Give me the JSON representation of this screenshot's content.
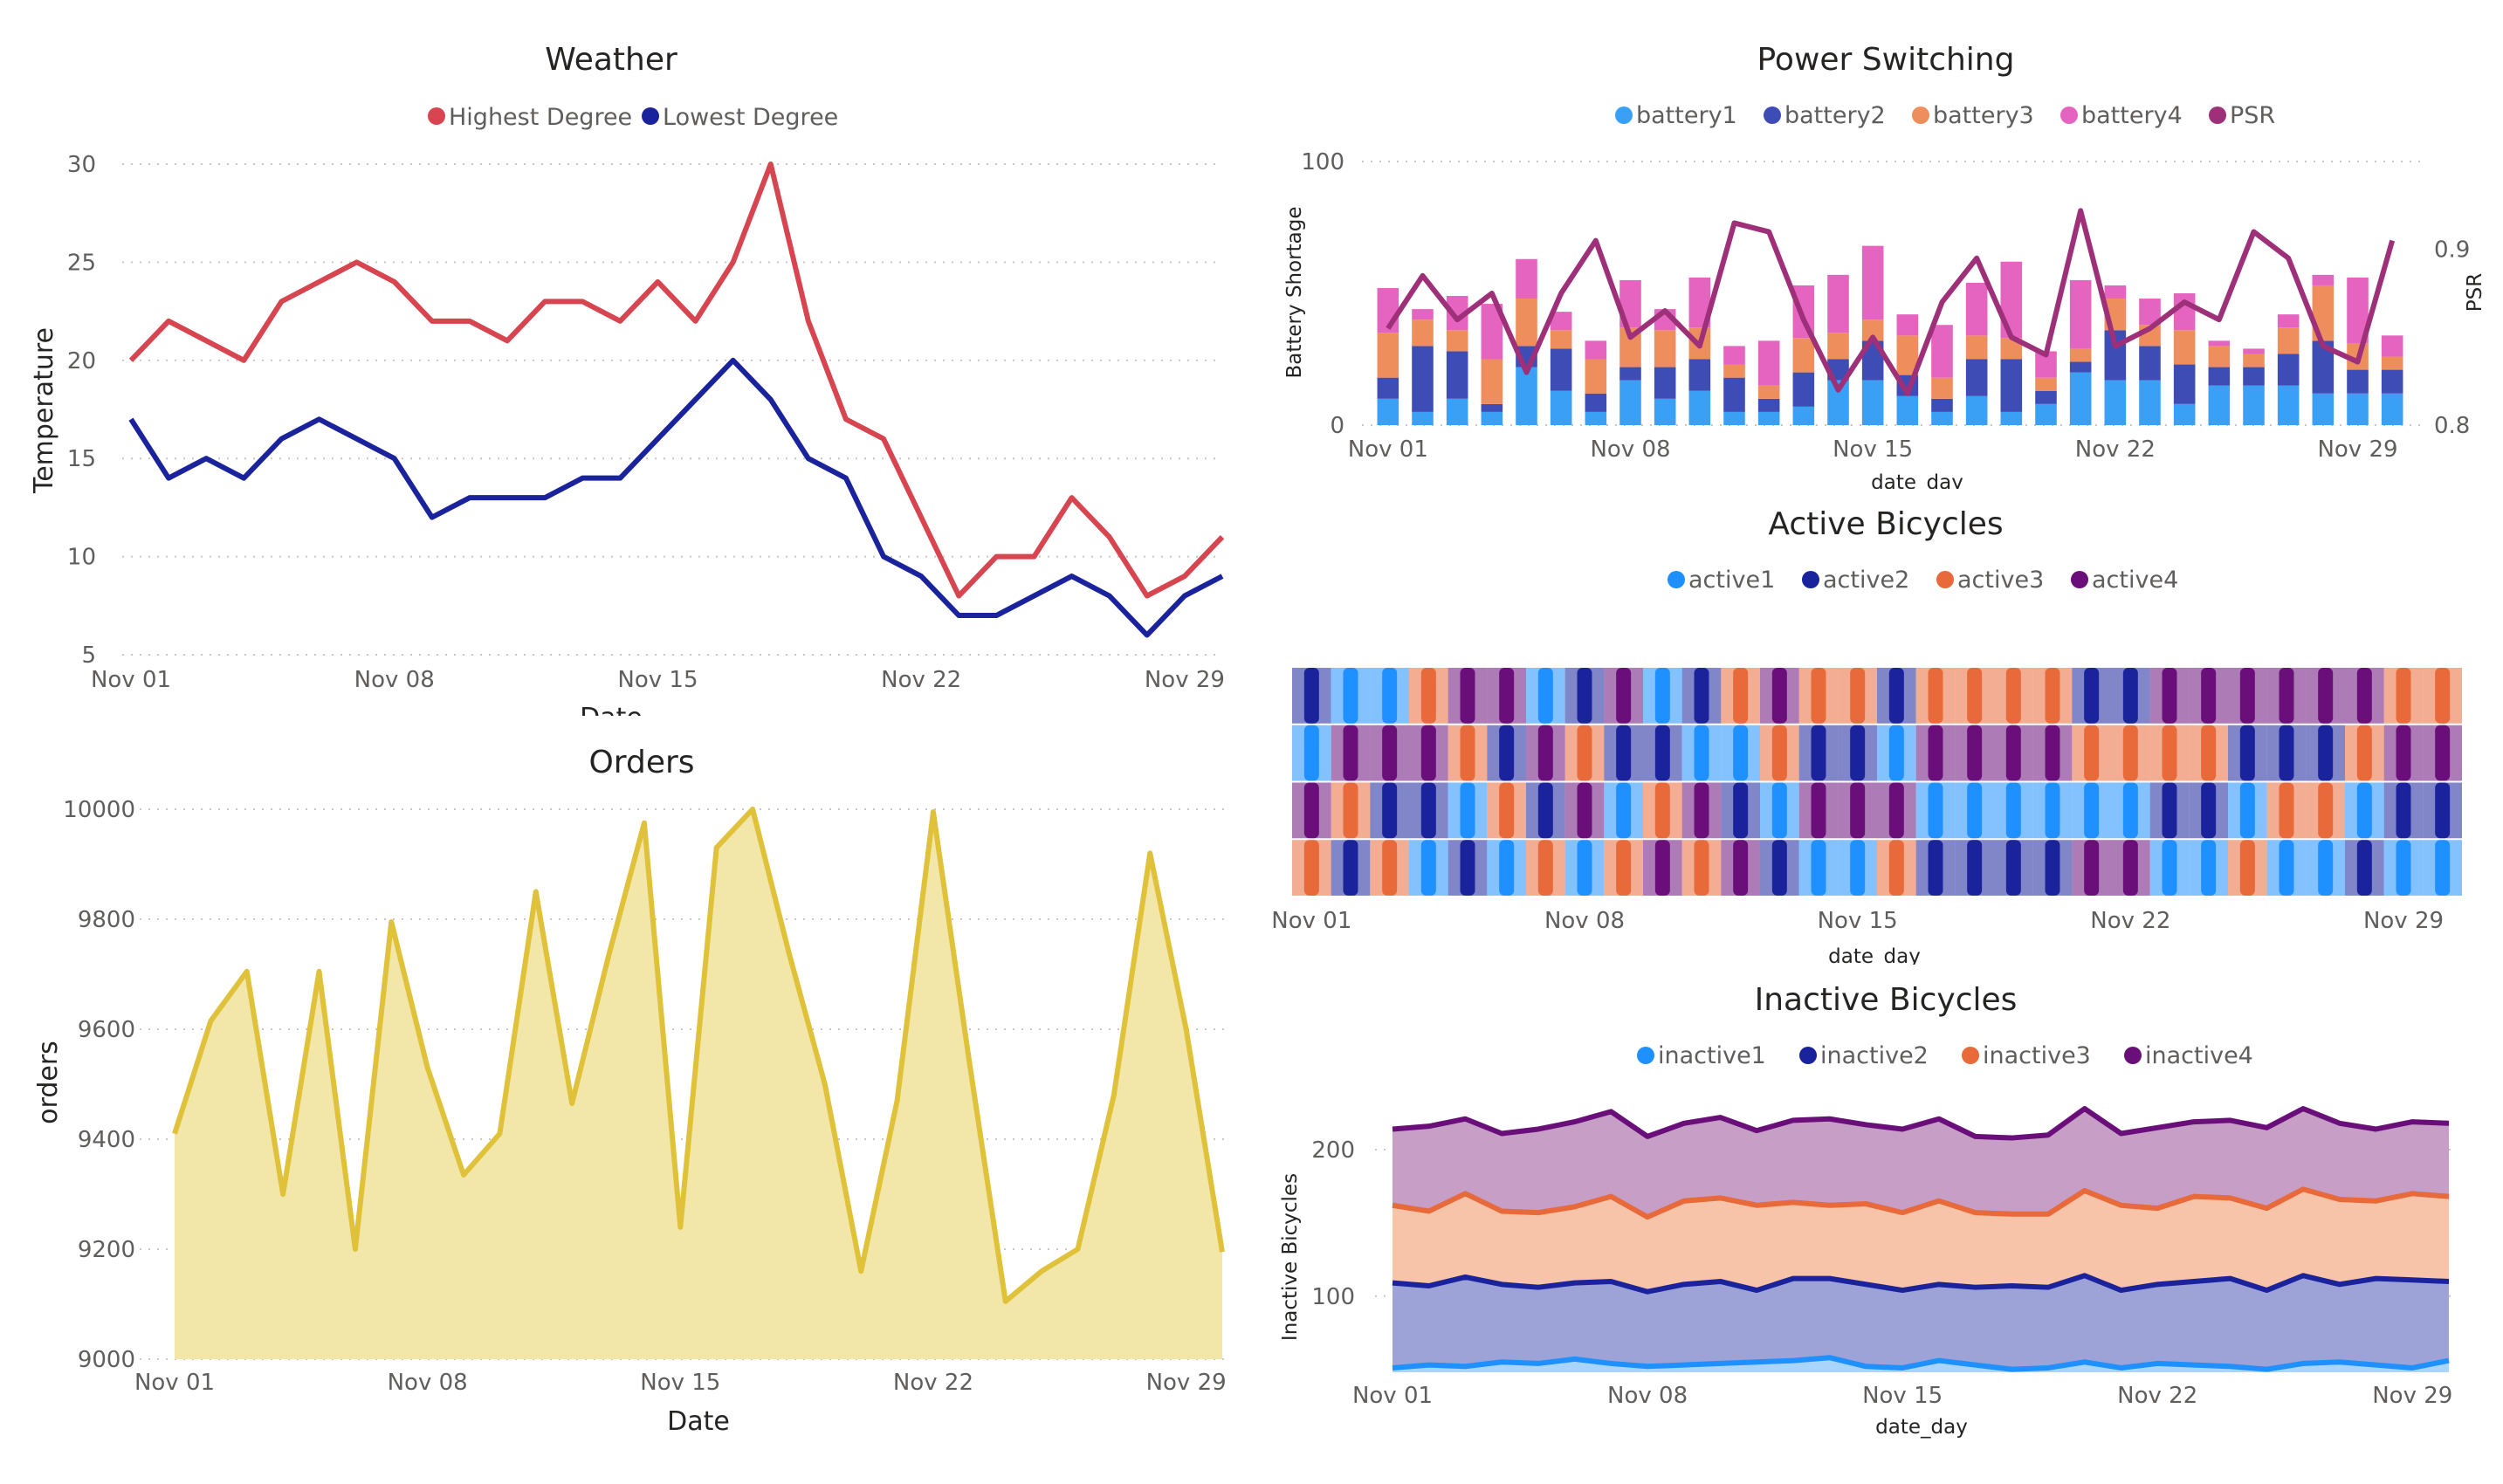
{
  "chart_data": [
    {
      "id": "weather",
      "type": "line",
      "title": "Weather",
      "xlabel": "Date",
      "ylabel": "Temperature",
      "x": [
        "Nov 01",
        "Nov 02",
        "Nov 03",
        "Nov 04",
        "Nov 05",
        "Nov 06",
        "Nov 07",
        "Nov 08",
        "Nov 09",
        "Nov 10",
        "Nov 11",
        "Nov 12",
        "Nov 13",
        "Nov 14",
        "Nov 15",
        "Nov 16",
        "Nov 17",
        "Nov 18",
        "Nov 19",
        "Nov 20",
        "Nov 21",
        "Nov 22",
        "Nov 23",
        "Nov 24",
        "Nov 25",
        "Nov 26",
        "Nov 27",
        "Nov 28",
        "Nov 29",
        "Nov 30"
      ],
      "xticks": [
        "Nov 01",
        "Nov 08",
        "Nov 15",
        "Nov 22",
        "Nov 29"
      ],
      "ylim": [
        5,
        30
      ],
      "yticks": [
        5,
        10,
        15,
        20,
        25,
        30
      ],
      "grid": true,
      "legend_position": "top",
      "series": [
        {
          "name": "Highest Degree",
          "color": "#d64550",
          "values": [
            20,
            22,
            21,
            20,
            23,
            24,
            25,
            24,
            22,
            22,
            21,
            23,
            23,
            22,
            24,
            22,
            25,
            30,
            22,
            17,
            16,
            12,
            8,
            10,
            10,
            13,
            11,
            8,
            9,
            11
          ]
        },
        {
          "name": "Lowest Degree",
          "color": "#1a239c",
          "values": [
            17,
            14,
            15,
            14,
            16,
            17,
            16,
            15,
            12,
            13,
            13,
            13,
            14,
            14,
            16,
            18,
            20,
            18,
            15,
            14,
            10,
            9,
            7,
            7,
            8,
            9,
            8,
            6,
            8,
            9
          ]
        }
      ]
    },
    {
      "id": "orders",
      "type": "area",
      "title": "Orders",
      "xlabel": "Date",
      "ylabel": "orders",
      "x": [
        "Nov 01",
        "Nov 02",
        "Nov 03",
        "Nov 04",
        "Nov 05",
        "Nov 06",
        "Nov 07",
        "Nov 08",
        "Nov 09",
        "Nov 10",
        "Nov 11",
        "Nov 12",
        "Nov 13",
        "Nov 14",
        "Nov 15",
        "Nov 16",
        "Nov 17",
        "Nov 18",
        "Nov 19",
        "Nov 20",
        "Nov 21",
        "Nov 22",
        "Nov 23",
        "Nov 24",
        "Nov 25",
        "Nov 26",
        "Nov 27",
        "Nov 28",
        "Nov 29",
        "Nov 30"
      ],
      "xticks": [
        "Nov 01",
        "Nov 08",
        "Nov 15",
        "Nov 22",
        "Nov 29"
      ],
      "ylim": [
        9000,
        10000
      ],
      "yticks": [
        9000,
        9200,
        9400,
        9600,
        9800,
        10000
      ],
      "grid": true,
      "series": [
        {
          "name": "orders",
          "color": "#e0c23a",
          "fill": "#f2e6a9",
          "values": [
            9410,
            9615,
            9705,
            9300,
            9705,
            9200,
            9795,
            9530,
            9335,
            9410,
            9850,
            9465,
            9730,
            9975,
            9240,
            9930,
            10000,
            9740,
            9500,
            9160,
            9470,
            9995,
            9540,
            9105,
            9160,
            9200,
            9480,
            9920,
            9600,
            9195
          ]
        }
      ]
    },
    {
      "id": "power",
      "type": "bar",
      "title": "Power Switching",
      "xlabel": "date_day",
      "ylabel": "Battery Shortage",
      "y2label": "PSR",
      "x": [
        "Nov 01",
        "Nov 02",
        "Nov 03",
        "Nov 04",
        "Nov 05",
        "Nov 06",
        "Nov 07",
        "Nov 08",
        "Nov 09",
        "Nov 10",
        "Nov 11",
        "Nov 12",
        "Nov 13",
        "Nov 14",
        "Nov 15",
        "Nov 16",
        "Nov 17",
        "Nov 18",
        "Nov 19",
        "Nov 20",
        "Nov 21",
        "Nov 22",
        "Nov 23",
        "Nov 24",
        "Nov 25",
        "Nov 26",
        "Nov 27",
        "Nov 28",
        "Nov 29",
        "Nov 30"
      ],
      "xticks": [
        "Nov 01",
        "Nov 08",
        "Nov 15",
        "Nov 22",
        "Nov 29"
      ],
      "ylim": [
        0,
        100
      ],
      "yticks": [
        0,
        100
      ],
      "y2lim": [
        0.8,
        0.95
      ],
      "y2ticks": [
        "0.8",
        "0.9"
      ],
      "stacked": true,
      "grid": true,
      "legend_position": "top",
      "series": [
        {
          "name": "battery1",
          "color": "#3aa0f5",
          "values": [
            10,
            5,
            10,
            5,
            22,
            13,
            5,
            17,
            10,
            13,
            5,
            5,
            7,
            17,
            17,
            11,
            5,
            11,
            5,
            8,
            20,
            17,
            17,
            8,
            15,
            15,
            15,
            12,
            12,
            12
          ]
        },
        {
          "name": "battery2",
          "color": "#3d4db5",
          "values": [
            8,
            25,
            18,
            3,
            8,
            16,
            7,
            5,
            12,
            12,
            13,
            5,
            13,
            8,
            15,
            8,
            5,
            14,
            20,
            5,
            4,
            19,
            13,
            15,
            7,
            7,
            12,
            20,
            9,
            9
          ]
        },
        {
          "name": "battery3",
          "color": "#ef8e5d",
          "values": [
            17,
            10,
            8,
            17,
            18,
            7,
            13,
            15,
            14,
            12,
            5,
            5,
            13,
            10,
            8,
            15,
            8,
            9,
            8,
            5,
            5,
            12,
            8,
            13,
            8,
            5,
            10,
            21,
            10,
            5
          ]
        },
        {
          "name": "battery4",
          "color": "#e564c0",
          "values": [
            17,
            4,
            13,
            21,
            15,
            7,
            7,
            18,
            8,
            19,
            7,
            17,
            20,
            22,
            28,
            8,
            20,
            20,
            29,
            10,
            26,
            5,
            10,
            14,
            2,
            2,
            5,
            4,
            25,
            8
          ]
        }
      ],
      "line_series": {
        "name": "PSR",
        "color": "#9e2f79",
        "values": [
          0.855,
          0.885,
          0.86,
          0.875,
          0.83,
          0.875,
          0.905,
          0.85,
          0.865,
          0.845,
          0.915,
          0.91,
          0.86,
          0.82,
          0.85,
          0.818,
          0.87,
          0.895,
          0.85,
          0.84,
          0.922,
          0.845,
          0.855,
          0.87,
          0.86,
          0.91,
          0.895,
          0.845,
          0.836,
          0.905
        ]
      }
    },
    {
      "id": "active",
      "type": "bar",
      "title": "Active Bicycles",
      "xlabel": "date_day",
      "xticks": [
        "Nov 01",
        "Nov 08",
        "Nov 15",
        "Nov 22",
        "Nov 29"
      ],
      "stacked": true,
      "legend_position": "top",
      "series": [
        {
          "name": "active1",
          "color": "#1e90ff"
        },
        {
          "name": "active2",
          "color": "#1a239c"
        },
        {
          "name": "active3",
          "color": "#e8693a"
        },
        {
          "name": "active4",
          "color": "#6a0f7a"
        }
      ],
      "order": [
        [
          1,
          0,
          3,
          2
        ],
        [
          0,
          3,
          2,
          1
        ],
        [
          0,
          3,
          1,
          2
        ],
        [
          2,
          3,
          1,
          0
        ],
        [
          3,
          2,
          0,
          1
        ],
        [
          3,
          1,
          2,
          0
        ],
        [
          0,
          3,
          1,
          2
        ],
        [
          1,
          2,
          3,
          0
        ],
        [
          3,
          1,
          0,
          2
        ],
        [
          0,
          1,
          2,
          3
        ],
        [
          1,
          0,
          3,
          2
        ],
        [
          2,
          0,
          1,
          3
        ],
        [
          3,
          2,
          0,
          1
        ],
        [
          2,
          1,
          3,
          0
        ],
        [
          2,
          1,
          3,
          0
        ],
        [
          1,
          0,
          3,
          2
        ],
        [
          2,
          3,
          0,
          1
        ],
        [
          2,
          3,
          0,
          1
        ],
        [
          2,
          3,
          0,
          1
        ],
        [
          2,
          3,
          0,
          1
        ],
        [
          1,
          2,
          0,
          3
        ],
        [
          1,
          2,
          0,
          3
        ],
        [
          3,
          2,
          1,
          0
        ],
        [
          3,
          2,
          1,
          0
        ],
        [
          3,
          1,
          0,
          2
        ],
        [
          3,
          1,
          2,
          0
        ],
        [
          3,
          1,
          2,
          0
        ],
        [
          3,
          2,
          0,
          1
        ],
        [
          2,
          3,
          1,
          0
        ],
        [
          2,
          3,
          1,
          0
        ]
      ]
    },
    {
      "id": "inactive",
      "type": "area",
      "title": "Inactive Bicycles",
      "xlabel": "date_day",
      "ylabel": "Inactive Bicycles",
      "x": [
        "Nov 01",
        "Nov 02",
        "Nov 03",
        "Nov 04",
        "Nov 05",
        "Nov 06",
        "Nov 07",
        "Nov 08",
        "Nov 09",
        "Nov 10",
        "Nov 11",
        "Nov 12",
        "Nov 13",
        "Nov 14",
        "Nov 15",
        "Nov 16",
        "Nov 17",
        "Nov 18",
        "Nov 19",
        "Nov 20",
        "Nov 21",
        "Nov 22",
        "Nov 23",
        "Nov 24",
        "Nov 25",
        "Nov 26",
        "Nov 27",
        "Nov 28",
        "Nov 29",
        "Nov 30"
      ],
      "xticks": [
        "Nov 01",
        "Nov 08",
        "Nov 15",
        "Nov 22",
        "Nov 29"
      ],
      "ylim": [
        48,
        228
      ],
      "yticks": [
        100,
        200
      ],
      "stacked": true,
      "grid": true,
      "legend_position": "top",
      "series": [
        {
          "name": "inactive1",
          "color": "#1e90ff",
          "fill": "#a9d4fb",
          "values": [
            51,
            53,
            52,
            55,
            54,
            57,
            54,
            52,
            53,
            54,
            55,
            56,
            58,
            52,
            51,
            56,
            53,
            50,
            51,
            55,
            51,
            54,
            53,
            52,
            50,
            54,
            55,
            53,
            51,
            56
          ]
        },
        {
          "name": "inactive2",
          "color": "#1a239c",
          "fill": "#9da3d6",
          "values": [
            109,
            107,
            113,
            108,
            106,
            109,
            110,
            103,
            108,
            110,
            104,
            112,
            112,
            108,
            104,
            108,
            106,
            107,
            106,
            114,
            104,
            108,
            110,
            112,
            104,
            114,
            108,
            112,
            111,
            110
          ]
        },
        {
          "name": "inactive3",
          "color": "#e8693a",
          "fill": "#f7c3a9",
          "values": [
            162,
            158,
            170,
            158,
            157,
            161,
            168,
            154,
            165,
            167,
            162,
            164,
            162,
            163,
            157,
            165,
            157,
            156,
            156,
            172,
            162,
            160,
            168,
            167,
            160,
            173,
            166,
            165,
            170,
            168
          ]
        },
        {
          "name": "inactive4",
          "color": "#6a0f7a",
          "fill": "#c69ec6",
          "values": [
            214,
            216,
            221,
            211,
            214,
            219,
            226,
            209,
            218,
            222,
            213,
            220,
            221,
            217,
            214,
            221,
            209,
            208,
            210,
            228,
            211,
            215,
            219,
            220,
            215,
            228,
            218,
            214,
            219,
            218
          ]
        }
      ]
    }
  ]
}
